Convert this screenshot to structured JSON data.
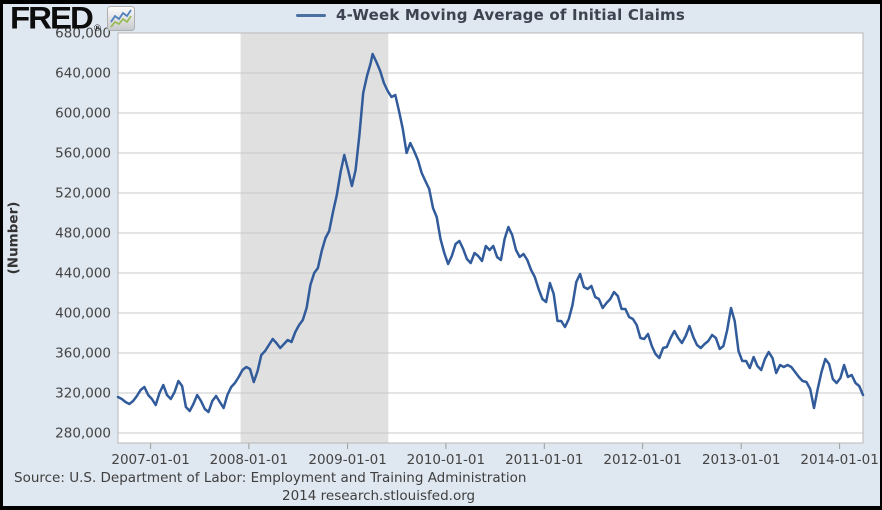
{
  "header": {
    "logo_text": "FRED",
    "logo_reg": "®"
  },
  "footer": {
    "source_line": "Source: U.S. Department of Labor: Employment and Training Administration",
    "credit_line": "2014 research.stlouisfed.org"
  },
  "colors": {
    "page_background": "#dfe7f0",
    "plot_background": "#ffffff",
    "frame_border": "#000000",
    "line": "#315b9a",
    "legend_swatch": "#4a70a3",
    "recession_band": "#e0e0e0",
    "gridline": "#c8c8c8",
    "plot_border": "#b9b9b9",
    "tick_text": "#444444",
    "logo_icon_blue": "#4f81bd",
    "logo_icon_green": "#9bbb59"
  },
  "chart_data": {
    "type": "line",
    "title": "4-Week Moving Average of Initial Claims",
    "xlabel": "",
    "ylabel": "(Number)",
    "legend_position": "top-center",
    "grid": "horizontal",
    "ylim": [
      270000,
      680000
    ],
    "yticks": [
      280000,
      320000,
      360000,
      400000,
      440000,
      480000,
      520000,
      560000,
      600000,
      640000,
      680000
    ],
    "ytick_labels": [
      "280,000",
      "320,000",
      "360,000",
      "400,000",
      "440,000",
      "480,000",
      "520,000",
      "560,000",
      "600,000",
      "640,000",
      "680,000"
    ],
    "xtick_labels": [
      "2007-01-01",
      "2008-01-01",
      "2009-01-01",
      "2010-01-01",
      "2011-01-01",
      "2012-01-01",
      "2013-01-01",
      "2014-01-01"
    ],
    "x_range": [
      "2006-09-02",
      "2014-03-29"
    ],
    "line_color": "#315b9a",
    "recession_bands": [
      {
        "start": "2007-12-01",
        "end": "2009-06-01"
      }
    ],
    "series": [
      {
        "name": "4-Week Moving Average of Initial Claims",
        "points": [
          [
            "2006-09-02",
            316000
          ],
          [
            "2006-09-16",
            314000
          ],
          [
            "2006-09-30",
            311000
          ],
          [
            "2006-10-14",
            309000
          ],
          [
            "2006-10-28",
            312000
          ],
          [
            "2006-11-11",
            317000
          ],
          [
            "2006-11-25",
            323000
          ],
          [
            "2006-12-09",
            326000
          ],
          [
            "2006-12-23",
            318000
          ],
          [
            "2007-01-06",
            314000
          ],
          [
            "2007-01-20",
            308000
          ],
          [
            "2007-02-03",
            320000
          ],
          [
            "2007-02-17",
            328000
          ],
          [
            "2007-03-03",
            318000
          ],
          [
            "2007-03-17",
            314000
          ],
          [
            "2007-03-31",
            321000
          ],
          [
            "2007-04-14",
            332000
          ],
          [
            "2007-04-28",
            327000
          ],
          [
            "2007-05-12",
            306000
          ],
          [
            "2007-05-26",
            302000
          ],
          [
            "2007-06-09",
            309000
          ],
          [
            "2007-06-23",
            318000
          ],
          [
            "2007-07-07",
            312000
          ],
          [
            "2007-07-21",
            304000
          ],
          [
            "2007-08-04",
            301000
          ],
          [
            "2007-08-18",
            312000
          ],
          [
            "2007-09-01",
            317000
          ],
          [
            "2007-09-15",
            311000
          ],
          [
            "2007-09-29",
            305000
          ],
          [
            "2007-10-13",
            318000
          ],
          [
            "2007-10-27",
            326000
          ],
          [
            "2007-11-10",
            330000
          ],
          [
            "2007-11-24",
            336000
          ],
          [
            "2007-12-08",
            343000
          ],
          [
            "2007-12-22",
            346000
          ],
          [
            "2008-01-05",
            344000
          ],
          [
            "2008-01-19",
            331000
          ],
          [
            "2008-02-02",
            342000
          ],
          [
            "2008-02-16",
            358000
          ],
          [
            "2008-03-01",
            362000
          ],
          [
            "2008-03-15",
            368000
          ],
          [
            "2008-03-29",
            374000
          ],
          [
            "2008-04-12",
            370000
          ],
          [
            "2008-04-26",
            365000
          ],
          [
            "2008-05-10",
            369000
          ],
          [
            "2008-05-24",
            373000
          ],
          [
            "2008-06-07",
            371000
          ],
          [
            "2008-06-21",
            381000
          ],
          [
            "2008-07-05",
            388000
          ],
          [
            "2008-07-19",
            393000
          ],
          [
            "2008-08-02",
            405000
          ],
          [
            "2008-08-16",
            428000
          ],
          [
            "2008-08-30",
            440000
          ],
          [
            "2008-09-13",
            445000
          ],
          [
            "2008-09-27",
            462000
          ],
          [
            "2008-10-11",
            475000
          ],
          [
            "2008-10-25",
            482000
          ],
          [
            "2008-11-08",
            501000
          ],
          [
            "2008-11-22",
            518000
          ],
          [
            "2008-12-06",
            541000
          ],
          [
            "2008-12-20",
            558000
          ],
          [
            "2009-01-03",
            543000
          ],
          [
            "2009-01-17",
            527000
          ],
          [
            "2009-01-31",
            543000
          ],
          [
            "2009-02-14",
            578000
          ],
          [
            "2009-02-28",
            620000
          ],
          [
            "2009-03-14",
            637000
          ],
          [
            "2009-03-28",
            650000
          ],
          [
            "2009-04-04",
            659000
          ],
          [
            "2009-04-18",
            651000
          ],
          [
            "2009-05-02",
            642000
          ],
          [
            "2009-05-16",
            630000
          ],
          [
            "2009-05-30",
            622000
          ],
          [
            "2009-06-13",
            616000
          ],
          [
            "2009-06-27",
            618000
          ],
          [
            "2009-07-11",
            602000
          ],
          [
            "2009-07-25",
            584000
          ],
          [
            "2009-08-08",
            560000
          ],
          [
            "2009-08-22",
            570000
          ],
          [
            "2009-09-05",
            562000
          ],
          [
            "2009-09-19",
            553000
          ],
          [
            "2009-10-03",
            540000
          ],
          [
            "2009-10-17",
            532000
          ],
          [
            "2009-10-31",
            524000
          ],
          [
            "2009-11-14",
            505000
          ],
          [
            "2009-11-28",
            496000
          ],
          [
            "2009-12-12",
            474000
          ],
          [
            "2009-12-26",
            460000
          ],
          [
            "2010-01-09",
            449000
          ],
          [
            "2010-01-23",
            457000
          ],
          [
            "2010-02-06",
            469000
          ],
          [
            "2010-02-20",
            472000
          ],
          [
            "2010-03-06",
            464000
          ],
          [
            "2010-03-20",
            454000
          ],
          [
            "2010-04-03",
            450000
          ],
          [
            "2010-04-17",
            460000
          ],
          [
            "2010-05-01",
            457000
          ],
          [
            "2010-05-15",
            452000
          ],
          [
            "2010-05-29",
            467000
          ],
          [
            "2010-06-12",
            463000
          ],
          [
            "2010-06-26",
            467000
          ],
          [
            "2010-07-10",
            456000
          ],
          [
            "2010-07-24",
            453000
          ],
          [
            "2010-08-07",
            474000
          ],
          [
            "2010-08-21",
            486000
          ],
          [
            "2010-09-04",
            478000
          ],
          [
            "2010-09-18",
            463000
          ],
          [
            "2010-10-02",
            456000
          ],
          [
            "2010-10-16",
            459000
          ],
          [
            "2010-10-30",
            453000
          ],
          [
            "2010-11-13",
            443000
          ],
          [
            "2010-11-27",
            436000
          ],
          [
            "2010-12-11",
            424000
          ],
          [
            "2010-12-25",
            414000
          ],
          [
            "2011-01-08",
            411000
          ],
          [
            "2011-01-22",
            430000
          ],
          [
            "2011-02-05",
            419000
          ],
          [
            "2011-02-19",
            392000
          ],
          [
            "2011-03-05",
            392000
          ],
          [
            "2011-03-19",
            386000
          ],
          [
            "2011-04-02",
            394000
          ],
          [
            "2011-04-16",
            408000
          ],
          [
            "2011-04-30",
            431000
          ],
          [
            "2011-05-14",
            439000
          ],
          [
            "2011-05-28",
            426000
          ],
          [
            "2011-06-11",
            424000
          ],
          [
            "2011-06-25",
            427000
          ],
          [
            "2011-07-09",
            416000
          ],
          [
            "2011-07-23",
            414000
          ],
          [
            "2011-08-06",
            405000
          ],
          [
            "2011-08-20",
            410000
          ],
          [
            "2011-09-03",
            414000
          ],
          [
            "2011-09-17",
            421000
          ],
          [
            "2011-10-01",
            417000
          ],
          [
            "2011-10-15",
            404000
          ],
          [
            "2011-10-29",
            404000
          ],
          [
            "2011-11-12",
            396000
          ],
          [
            "2011-11-26",
            394000
          ],
          [
            "2011-12-10",
            388000
          ],
          [
            "2011-12-24",
            375000
          ],
          [
            "2012-01-07",
            374000
          ],
          [
            "2012-01-21",
            379000
          ],
          [
            "2012-02-04",
            367000
          ],
          [
            "2012-02-18",
            359000
          ],
          [
            "2012-03-03",
            355000
          ],
          [
            "2012-03-17",
            365000
          ],
          [
            "2012-03-31",
            366000
          ],
          [
            "2012-04-14",
            375000
          ],
          [
            "2012-04-28",
            382000
          ],
          [
            "2012-05-12",
            375000
          ],
          [
            "2012-05-26",
            370000
          ],
          [
            "2012-06-09",
            377000
          ],
          [
            "2012-06-23",
            387000
          ],
          [
            "2012-07-07",
            376000
          ],
          [
            "2012-07-21",
            368000
          ],
          [
            "2012-08-04",
            365000
          ],
          [
            "2012-08-18",
            369000
          ],
          [
            "2012-09-01",
            372000
          ],
          [
            "2012-09-15",
            378000
          ],
          [
            "2012-09-29",
            375000
          ],
          [
            "2012-10-13",
            364000
          ],
          [
            "2012-10-27",
            367000
          ],
          [
            "2012-11-10",
            383000
          ],
          [
            "2012-11-24",
            405000
          ],
          [
            "2012-12-08",
            392000
          ],
          [
            "2012-12-22",
            362000
          ],
          [
            "2013-01-05",
            352000
          ],
          [
            "2013-01-19",
            352000
          ],
          [
            "2013-02-02",
            345000
          ],
          [
            "2013-02-16",
            356000
          ],
          [
            "2013-03-02",
            347000
          ],
          [
            "2013-03-16",
            343000
          ],
          [
            "2013-03-30",
            354000
          ],
          [
            "2013-04-13",
            361000
          ],
          [
            "2013-04-27",
            355000
          ],
          [
            "2013-05-11",
            340000
          ],
          [
            "2013-05-25",
            348000
          ],
          [
            "2013-06-08",
            346000
          ],
          [
            "2013-06-22",
            348000
          ],
          [
            "2013-07-06",
            346000
          ],
          [
            "2013-07-20",
            341000
          ],
          [
            "2013-08-03",
            336000
          ],
          [
            "2013-08-17",
            332000
          ],
          [
            "2013-08-31",
            331000
          ],
          [
            "2013-09-14",
            324000
          ],
          [
            "2013-09-28",
            305000
          ],
          [
            "2013-10-12",
            324000
          ],
          [
            "2013-10-26",
            341000
          ],
          [
            "2013-11-09",
            354000
          ],
          [
            "2013-11-23",
            349000
          ],
          [
            "2013-12-07",
            334000
          ],
          [
            "2013-12-21",
            330000
          ],
          [
            "2014-01-04",
            335000
          ],
          [
            "2014-01-18",
            348000
          ],
          [
            "2014-02-01",
            336000
          ],
          [
            "2014-02-15",
            338000
          ],
          [
            "2014-03-01",
            330000
          ],
          [
            "2014-03-15",
            327000
          ],
          [
            "2014-03-29",
            318000
          ]
        ]
      }
    ]
  }
}
